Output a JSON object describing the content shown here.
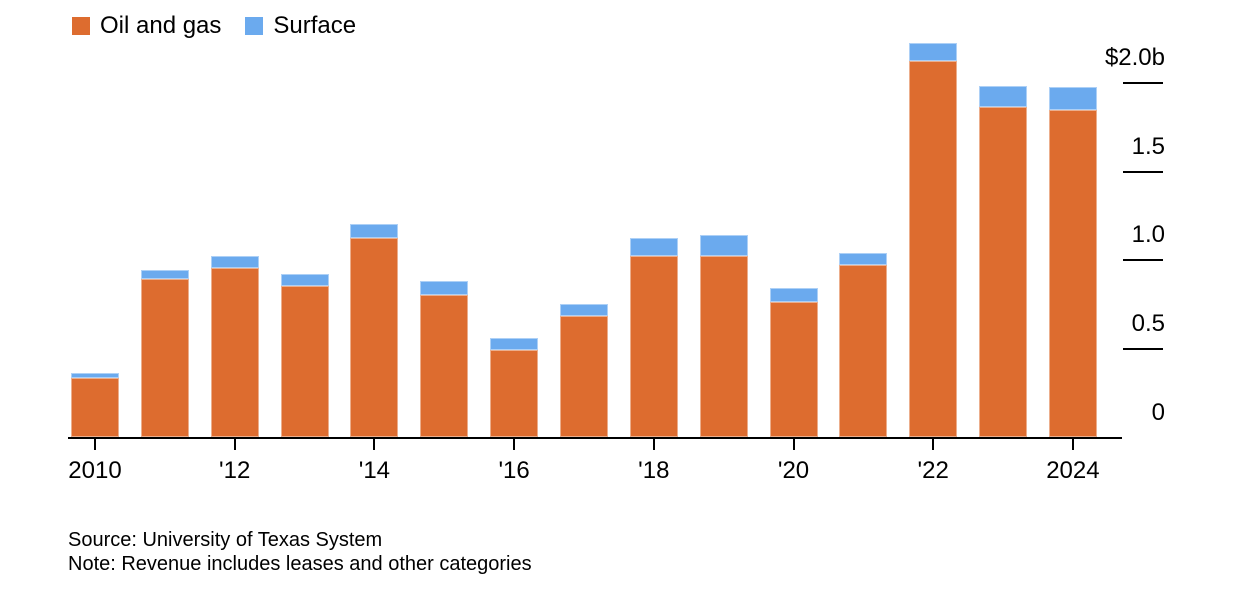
{
  "chart_data": {
    "type": "bar",
    "stacked": true,
    "title": "",
    "unit": "$ billions",
    "categories": [
      2010,
      2011,
      2012,
      2013,
      2014,
      2015,
      2016,
      2017,
      2018,
      2019,
      2020,
      2021,
      2022,
      2023,
      2024
    ],
    "series": [
      {
        "name": "Oil and gas",
        "color": "#dd6c2f",
        "values": [
          0.33,
          0.89,
          0.95,
          0.85,
          1.12,
          0.8,
          0.49,
          0.68,
          1.02,
          1.02,
          0.76,
          0.97,
          2.12,
          1.86,
          1.84
        ]
      },
      {
        "name": "Surface",
        "color": "#6baaee",
        "values": [
          0.03,
          0.05,
          0.07,
          0.07,
          0.08,
          0.08,
          0.07,
          0.07,
          0.1,
          0.12,
          0.08,
          0.07,
          0.1,
          0.12,
          0.13
        ]
      }
    ],
    "x_ticks": [
      {
        "index": 0,
        "label": "2010"
      },
      {
        "index": 2,
        "label": "'12"
      },
      {
        "index": 4,
        "label": "'14"
      },
      {
        "index": 6,
        "label": "'16"
      },
      {
        "index": 8,
        "label": "'18"
      },
      {
        "index": 10,
        "label": "'20"
      },
      {
        "index": 12,
        "label": "'22"
      },
      {
        "index": 14,
        "label": "2024"
      }
    ],
    "y_ticks": [
      {
        "value": 2.0,
        "label": "$2.0b"
      },
      {
        "value": 1.5,
        "label": "1.5"
      },
      {
        "value": 1.0,
        "label": "1.0"
      },
      {
        "value": 0.5,
        "label": "0.5"
      },
      {
        "value": 0,
        "label": "0"
      }
    ],
    "ylim": [
      0,
      2.46
    ],
    "grid": false,
    "legend_position": "top-left"
  },
  "footer": {
    "source": "Source: University of Texas System",
    "note": "Note: Revenue includes leases and other categories"
  },
  "colors": {
    "axis": "#000000",
    "background": "#ffffff"
  }
}
